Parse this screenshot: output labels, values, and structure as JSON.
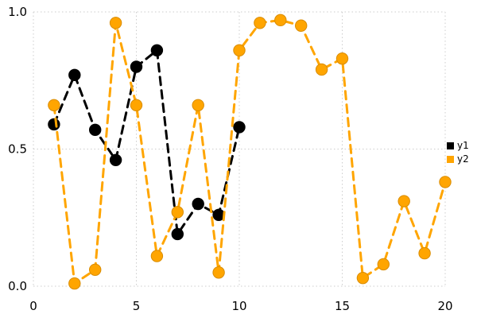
{
  "chart_data": {
    "type": "line",
    "title": "",
    "xlabel": "",
    "ylabel": "",
    "xlim": [
      0,
      20
    ],
    "ylim": [
      0.0,
      1.0
    ],
    "grid": true,
    "grid_color": "#cccccc",
    "grid_style": "dotted",
    "legend_position": "right",
    "line_style": "dashed",
    "marker": "circle",
    "xticks": {
      "values": [
        0,
        5,
        10,
        15,
        20
      ],
      "labels": [
        "0",
        "5",
        "10",
        "15",
        "20"
      ]
    },
    "yticks": {
      "values": [
        0.0,
        0.5,
        1.0
      ],
      "labels": [
        "0.0",
        "0.5",
        "1.0"
      ]
    },
    "series": [
      {
        "name": "y1",
        "color": "#000000",
        "marker_stroke": "#000000",
        "x": [
          1,
          2,
          3,
          4,
          5,
          6,
          7,
          8,
          9,
          10
        ],
        "values": [
          0.59,
          0.77,
          0.57,
          0.46,
          0.8,
          0.86,
          0.19,
          0.3,
          0.26,
          0.58
        ]
      },
      {
        "name": "y2",
        "color": "#FFA500",
        "marker_stroke": "#D98C00",
        "x": [
          1,
          2,
          3,
          4,
          5,
          6,
          7,
          8,
          9,
          10,
          11,
          12,
          13,
          14,
          15,
          16,
          17,
          18,
          19,
          20
        ],
        "values": [
          0.66,
          0.01,
          0.06,
          0.96,
          0.66,
          0.11,
          0.27,
          0.66,
          0.05,
          0.86,
          0.96,
          0.97,
          0.95,
          0.79,
          0.83,
          0.03,
          0.08,
          0.31,
          0.12,
          0.38
        ]
      }
    ]
  }
}
